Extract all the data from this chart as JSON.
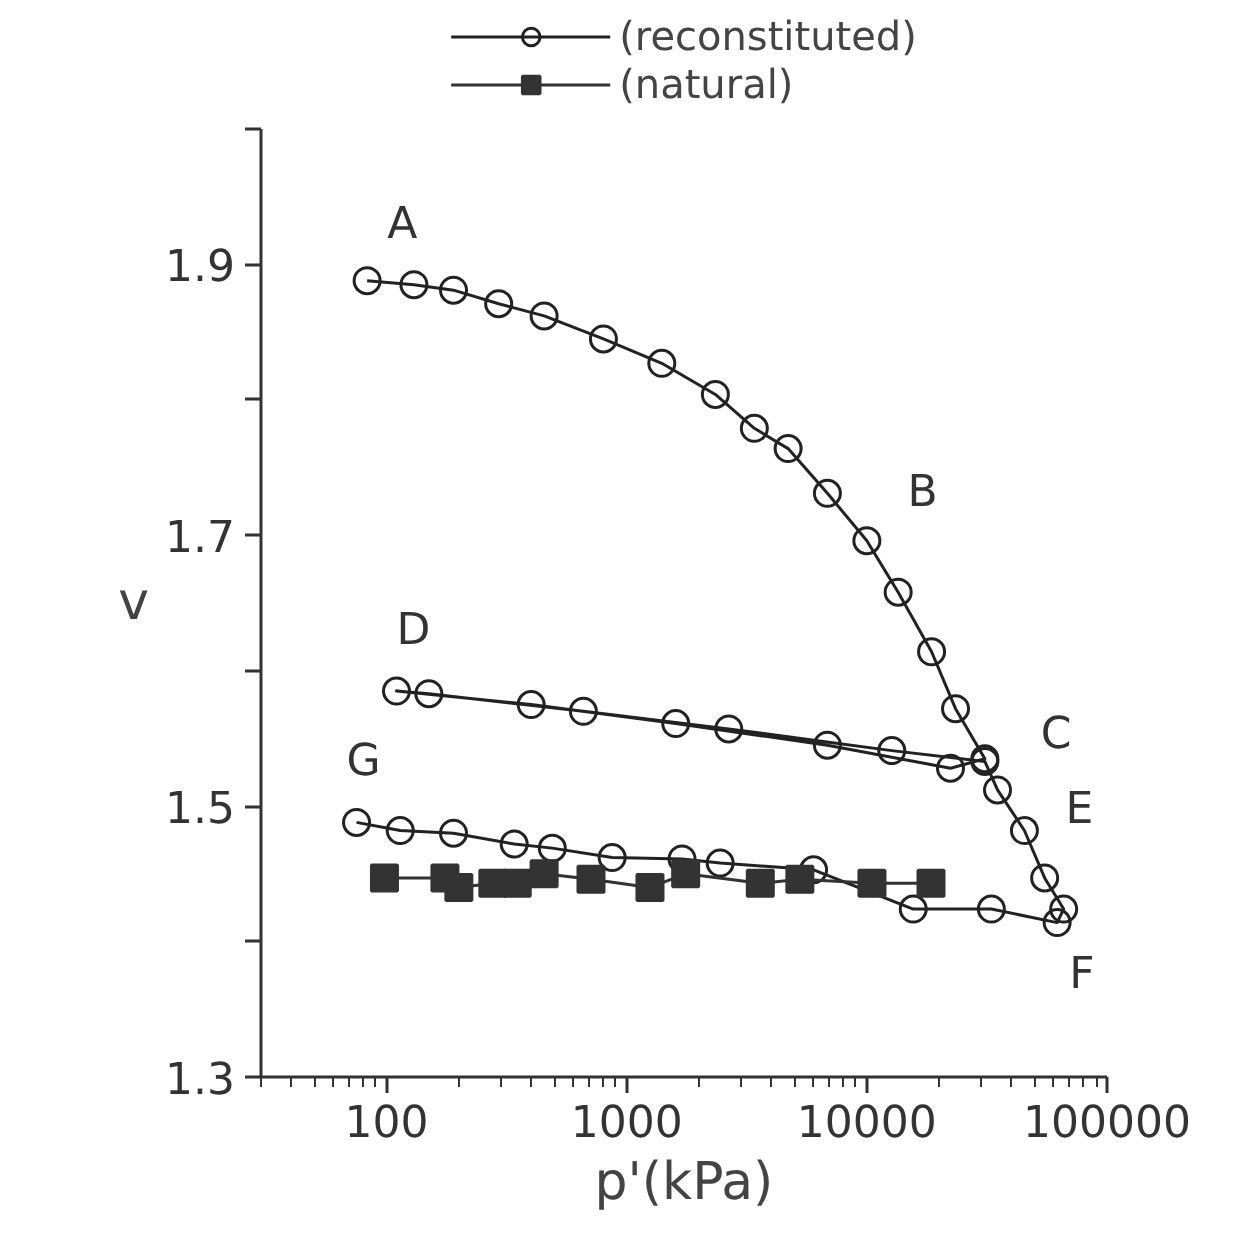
{
  "chart_data": {
    "type": "line",
    "xlabel": "p'(kPa)",
    "ylabel": "v",
    "log": "x",
    "xlim": [
      30,
      100000
    ],
    "xticks": [
      100,
      1000,
      10000,
      100000
    ],
    "ylim": [
      1.3,
      2.0
    ],
    "yticks": [
      1.3,
      {
        "value": 1.4,
        "label": null
      },
      1.5,
      {
        "value": 1.6,
        "label": null
      },
      1.7,
      {
        "value": 1.8,
        "label": null
      },
      1.9,
      {
        "value": 2.0,
        "label": null
      }
    ],
    "grid": false,
    "legend": "top",
    "line_style": "solid",
    "series": [
      {
        "name": "(reconstituted)",
        "color": "#222222",
        "marker": "circle",
        "x": [
          83,
          130,
          190,
          293,
          453,
          800,
          1400,
          2340,
          3400,
          4700,
          6850,
          10000,
          13500,
          18600,
          23400,
          31000,
          22300,
          6850,
          1600,
          400,
          110,
          150,
          660,
          2660,
          12700,
          31000,
          35000,
          45300,
          55000,
          66000,
          62000,
          33000,
          15600,
          6000,
          2450,
          1700,
          870,
          490,
          340,
          190,
          114,
          75
        ],
        "values": [
          1.888,
          1.885,
          1.881,
          1.871,
          1.862,
          1.845,
          1.827,
          1.804,
          1.779,
          1.764,
          1.731,
          1.696,
          1.658,
          1.614,
          1.572,
          1.535,
          1.528,
          1.545,
          1.561,
          1.575,
          1.585,
          1.583,
          1.57,
          1.557,
          1.541,
          1.533,
          1.512,
          1.482,
          1.447,
          1.424,
          1.414,
          1.424,
          1.424,
          1.453,
          1.458,
          1.461,
          1.462,
          1.469,
          1.472,
          1.48,
          1.482,
          1.488
        ]
      },
      {
        "name": "(natural)",
        "color": "#333333",
        "marker": "square",
        "x": [
          98,
          175,
          200,
          277,
          350,
          453,
          710,
          1250,
          1760,
          3600,
          5260,
          10500,
          18500
        ],
        "values": [
          1.447,
          1.447,
          1.44,
          1.443,
          1.443,
          1.45,
          1.446,
          1.44,
          1.45,
          1.443,
          1.446,
          1.443,
          1.443
        ]
      }
    ],
    "annotations": [
      {
        "text": "A",
        "x": 83,
        "y": 1.888
      },
      {
        "text": "B",
        "x": 6850,
        "y": 1.731
      },
      {
        "text": "C",
        "x": 31000,
        "y": 1.535
      },
      {
        "text": "D",
        "x": 110,
        "y": 1.585
      },
      {
        "text": "E",
        "x": 35000,
        "y": 1.512
      },
      {
        "text": "F",
        "x": 62000,
        "y": 1.414
      },
      {
        "text": "G",
        "x": 75,
        "y": 1.488
      }
    ]
  }
}
